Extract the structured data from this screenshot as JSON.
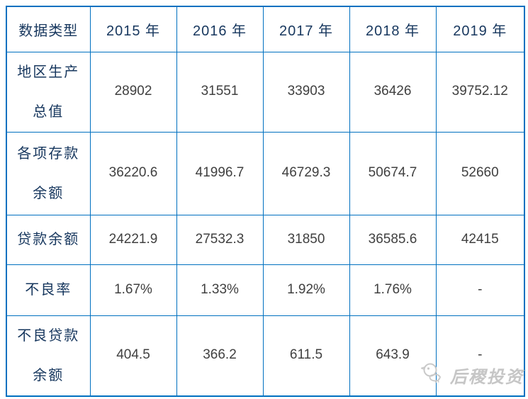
{
  "chart_data": {
    "type": "table",
    "columns": [
      "数据类型",
      "2015 年",
      "2016 年",
      "2017 年",
      "2018 年",
      "2019 年"
    ],
    "rows": [
      {
        "label": "地区生产\n总值",
        "values": [
          "28902",
          "31551",
          "33903",
          "36426",
          "39752.12"
        ]
      },
      {
        "label": "各项存款\n余额",
        "values": [
          "36220.6",
          "41996.7",
          "46729.3",
          "50674.7",
          "52660"
        ]
      },
      {
        "label": "贷款余额",
        "values": [
          "24221.9",
          "27532.3",
          "31850",
          "36585.6",
          "42415"
        ]
      },
      {
        "label": "不良率",
        "values": [
          "1.67%",
          "1.33%",
          "1.92%",
          "1.76%",
          "-"
        ]
      },
      {
        "label": "不良贷款\n余额",
        "values": [
          "404.5",
          "366.2",
          "611.5",
          "643.9",
          "-"
        ]
      }
    ]
  },
  "watermark": {
    "logo": "bird-logo-icon",
    "text": "后稷投资"
  },
  "colors": {
    "grid_border": "#0070c0",
    "header_text": "#17375e",
    "value_text": "#404040",
    "watermark": "#c6c6c6",
    "background": "#ffffff"
  }
}
